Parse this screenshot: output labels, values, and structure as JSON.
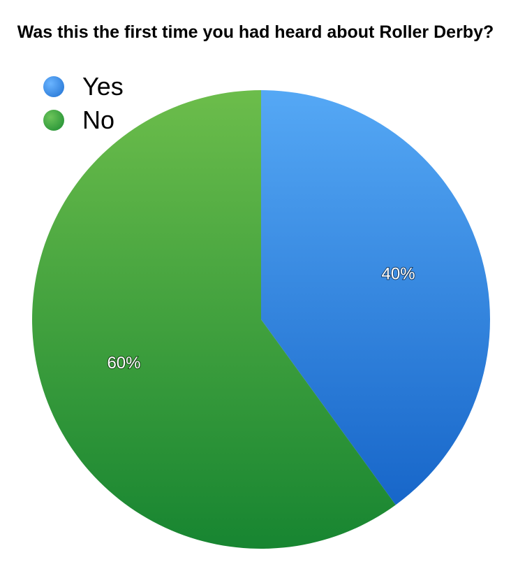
{
  "chart_data": {
    "type": "pie",
    "title": "Was this the first time you had heard about Roller Derby?",
    "categories": [
      "Yes",
      "No"
    ],
    "values": [
      40,
      60
    ],
    "value_labels": [
      "40%",
      "60%"
    ],
    "colors": [
      "#3d8fe3",
      "#2f9a3a"
    ],
    "legend": {
      "position": "top-left",
      "entries": [
        "Yes",
        "No"
      ]
    }
  }
}
